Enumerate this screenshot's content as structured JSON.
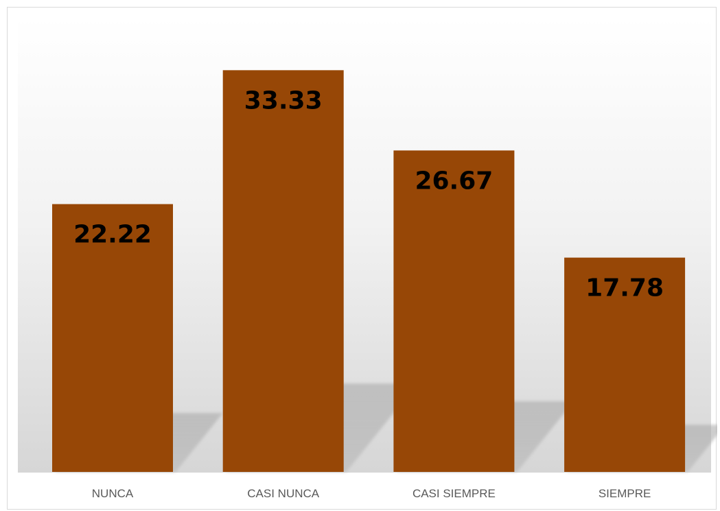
{
  "chart_data": {
    "type": "bar",
    "categories": [
      "NUNCA",
      "CASI NUNCA",
      "CASI SIEMPRE",
      "SIEMPRE"
    ],
    "values": [
      22.22,
      33.33,
      26.67,
      17.78
    ],
    "data_labels": [
      "22.22",
      "33.33",
      "26.67",
      "17.78"
    ],
    "title": "",
    "xlabel": "",
    "ylabel": "",
    "ylim": [
      0,
      35
    ],
    "grid": false,
    "legend": "none",
    "bar_color": "#974706",
    "shadow": true,
    "background_gradient": [
      "#ffffff",
      "#d9d9d9"
    ]
  }
}
